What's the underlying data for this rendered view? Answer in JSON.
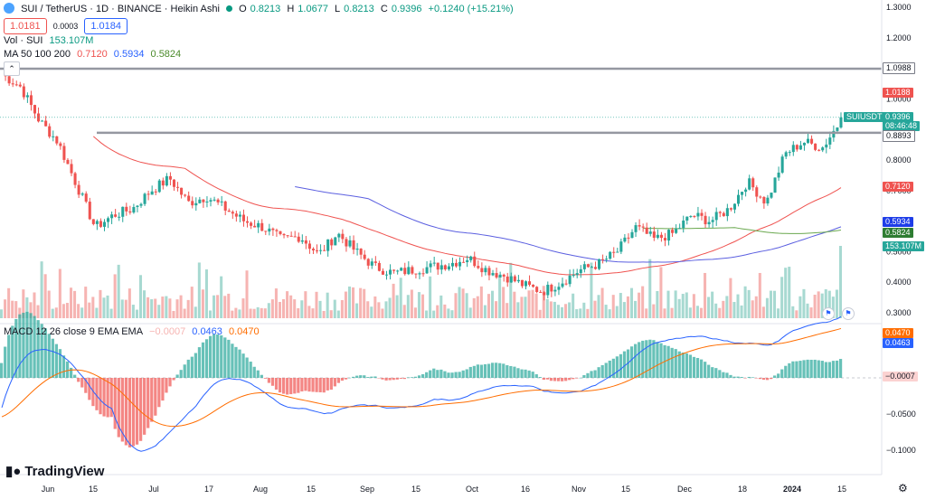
{
  "header": {
    "title": "SUI / TetherUS · 1D · BINANCE · Heikin Ashi",
    "ohlc": {
      "o_label": "O",
      "o": "0.8213",
      "h_label": "H",
      "h": "1.0677",
      "l_label": "L",
      "l": "0.8213",
      "c_label": "C",
      "c": "0.9396",
      "change": "+0.1240 (+15.21%)"
    },
    "sell_price": "1.0181",
    "spread": "0.0003",
    "buy_price": "1.0184",
    "vol_label": "Vol · SUI",
    "vol_value": "153.107M",
    "ma_label": "MA 50 100 200",
    "ma_values": [
      "0.7120",
      "0.5934",
      "0.5824"
    ],
    "macd_label": "MACD 12 26 close 9 EMA EMA",
    "macd_values": [
      "−0.0007",
      "0.0463",
      "0.0470"
    ]
  },
  "colors": {
    "up": "#26a69a",
    "down": "#ef5350",
    "ma50": "#ef5350",
    "ma100": "#5b5fe0",
    "ma200": "#6aa84f",
    "macd": "#2962ff",
    "signal": "#ff6d00",
    "vol_up": "#a7d9d1",
    "vol_down": "#f6b4b2"
  },
  "price_axis_labels": [
    "1.3000",
    "1.2000",
    "1.1000",
    "1.0000",
    "0.9000",
    "0.8000",
    "0.7000",
    "0.6000",
    "0.5000",
    "0.4000",
    "0.3000"
  ],
  "macd_axis_labels": [
    "−0.0500",
    "−0.1000"
  ],
  "time_axis_labels": [
    "Jun",
    "15",
    "Jul",
    "17",
    "Aug",
    "15",
    "Sep",
    "15",
    "Oct",
    "16",
    "Nov",
    "15",
    "Dec",
    "18",
    "2024",
    "15"
  ],
  "price_tags": {
    "resistance_1": "1.0988",
    "resistance_2": "0.8893",
    "high_line": "1.0188",
    "symbol": "SUIUSDT",
    "last": "0.9396",
    "countdown": "08:46:48",
    "ma50": "0.7120",
    "ma100": "0.5934",
    "ma200": "0.5824",
    "volume": "153.107M",
    "macd_signal": "0.0470",
    "macd_line": "0.0463",
    "histogram": "−0.0007"
  },
  "brand": "TradingView",
  "chart_data": {
    "type": "candlestick",
    "symbol": "SUI / TetherUS",
    "timeframe": "1D",
    "style": "Heikin Ashi",
    "price_range": [
      0.28,
      1.3
    ],
    "horizontal_lines": [
      1.0988,
      0.8893
    ],
    "price_anchors": [
      1.08,
      1.04,
      0.93,
      0.86,
      0.72,
      0.58,
      0.62,
      0.64,
      0.7,
      0.74,
      0.66,
      0.68,
      0.64,
      0.6,
      0.58,
      0.54,
      0.55,
      0.49,
      0.56,
      0.5,
      0.45,
      0.43,
      0.44,
      0.45,
      0.46,
      0.48,
      0.44,
      0.42,
      0.39,
      0.37,
      0.4,
      0.44,
      0.46,
      0.5,
      0.58,
      0.54,
      0.56,
      0.62,
      0.6,
      0.64,
      0.73,
      0.66,
      0.82,
      0.86,
      0.84,
      0.93
    ],
    "ma_lines": {
      "ma50": "0.7120",
      "ma100": "0.5934",
      "ma200": "0.5824"
    },
    "volume_last": "153.107M",
    "macd": {
      "histogram": "−0.0007",
      "macd": "0.0463",
      "signal": "0.0470",
      "axis_ticks": [
        -0.05,
        -0.1
      ]
    },
    "x_ticks": [
      "Jun",
      "15",
      "Jul",
      "17",
      "Aug",
      "15",
      "Sep",
      "15",
      "Oct",
      "16",
      "Nov",
      "15",
      "Dec",
      "18",
      "2024",
      "15"
    ]
  }
}
